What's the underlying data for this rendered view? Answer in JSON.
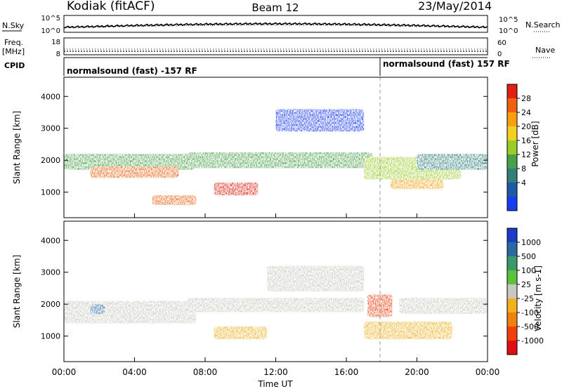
{
  "header": {
    "station": "Kodiak (fitACF)",
    "beam": "Beam 12",
    "date": "23/May/2014"
  },
  "strips": {
    "nsky_label": "N.Sky",
    "nsearch_label": "N.Search",
    "nsky_ticks": [
      "10^5",
      "10^0"
    ],
    "nsearch_ticks": [
      "10^5",
      "10^0"
    ],
    "freq_label": "Freq.",
    "freq_unit": "[MHz]",
    "freq_ticks": [
      "18",
      "8"
    ],
    "nave_label": "Nave",
    "nave_ticks": [
      "60",
      "0"
    ],
    "cpid_label": "CPID",
    "cpid_segments": [
      {
        "text": "normalsound (fast) -157 RF",
        "start_hour": 0
      },
      {
        "text": "normalsound (fast) 157 RF",
        "start_hour": 18
      }
    ]
  },
  "chart_data": [
    {
      "type": "heatmap",
      "name": "power",
      "ylabel": "Slant Range [km]",
      "xlabel": "",
      "y_ticks": [
        1000,
        2000,
        3000,
        4000
      ],
      "ylim": [
        200,
        4600
      ],
      "xlim": [
        0,
        24
      ],
      "colorbar": {
        "label": "Power [dB]",
        "ticks": [
          "4",
          "8",
          "12",
          "16",
          "20",
          "24",
          "28"
        ],
        "colors": [
          "#1a3cf0",
          "#1e5aa8",
          "#2f7f7a",
          "#4aa04a",
          "#9ccc28",
          "#f0d020",
          "#f8a010",
          "#f06010",
          "#e02010"
        ]
      },
      "regions": [
        {
          "x": [
            0.0,
            7.4
          ],
          "y": [
            1700,
            2200
          ],
          "level": 3
        },
        {
          "x": [
            1.5,
            6.5
          ],
          "y": [
            1450,
            1800
          ],
          "level": 7
        },
        {
          "x": [
            5.0,
            7.5
          ],
          "y": [
            600,
            900
          ],
          "level": 7
        },
        {
          "x": [
            8.5,
            11.0
          ],
          "y": [
            900,
            1300
          ],
          "level": 8
        },
        {
          "x": [
            7.0,
            17.5
          ],
          "y": [
            1750,
            2250
          ],
          "level": 3
        },
        {
          "x": [
            12.0,
            17.0
          ],
          "y": [
            2900,
            3600
          ],
          "level": 0
        },
        {
          "x": [
            17.0,
            22.5
          ],
          "y": [
            1400,
            2100
          ],
          "level": 4
        },
        {
          "x": [
            18.5,
            21.5
          ],
          "y": [
            1100,
            1400
          ],
          "level": 6
        },
        {
          "x": [
            20.0,
            24.0
          ],
          "y": [
            1700,
            2200
          ],
          "level": 2
        }
      ]
    },
    {
      "type": "heatmap",
      "name": "velocity",
      "ylabel": "Slant Range [km]",
      "xlabel": "Time UT",
      "x_ticks": [
        "00:00",
        "04:00",
        "08:00",
        "12:00",
        "16:00",
        "20:00",
        "00:00"
      ],
      "y_ticks": [
        1000,
        2000,
        3000,
        4000
      ],
      "ylim": [
        200,
        4600
      ],
      "xlim": [
        0,
        24
      ],
      "colorbar": {
        "label": "Velocity [m s-1]",
        "ticks": [
          "1000",
          "500",
          "100",
          "25",
          "-25",
          "-100",
          "-500",
          "-1000"
        ],
        "colors": [
          "#1a3cc8",
          "#2a6aa0",
          "#3a9a6a",
          "#5cc23c",
          "#c8c8c0",
          "#f0b020",
          "#f08010",
          "#f04010",
          "#e01010"
        ]
      },
      "regions": [
        {
          "x": [
            0.0,
            7.5
          ],
          "y": [
            1400,
            2100
          ],
          "level": 4
        },
        {
          "x": [
            1.5,
            2.3
          ],
          "y": [
            1700,
            2000
          ],
          "level": 1
        },
        {
          "x": [
            8.5,
            11.5
          ],
          "y": [
            900,
            1300
          ],
          "level": 5
        },
        {
          "x": [
            7.0,
            17.0
          ],
          "y": [
            1750,
            2200
          ],
          "level": 4
        },
        {
          "x": [
            11.5,
            17.0
          ],
          "y": [
            2400,
            3200
          ],
          "level": 4
        },
        {
          "x": [
            17.0,
            22.0
          ],
          "y": [
            900,
            1450
          ],
          "level": 5
        },
        {
          "x": [
            17.2,
            18.6
          ],
          "y": [
            1600,
            2300
          ],
          "level": 7
        },
        {
          "x": [
            19.0,
            24.0
          ],
          "y": [
            1700,
            2200
          ],
          "level": 4
        }
      ]
    }
  ]
}
